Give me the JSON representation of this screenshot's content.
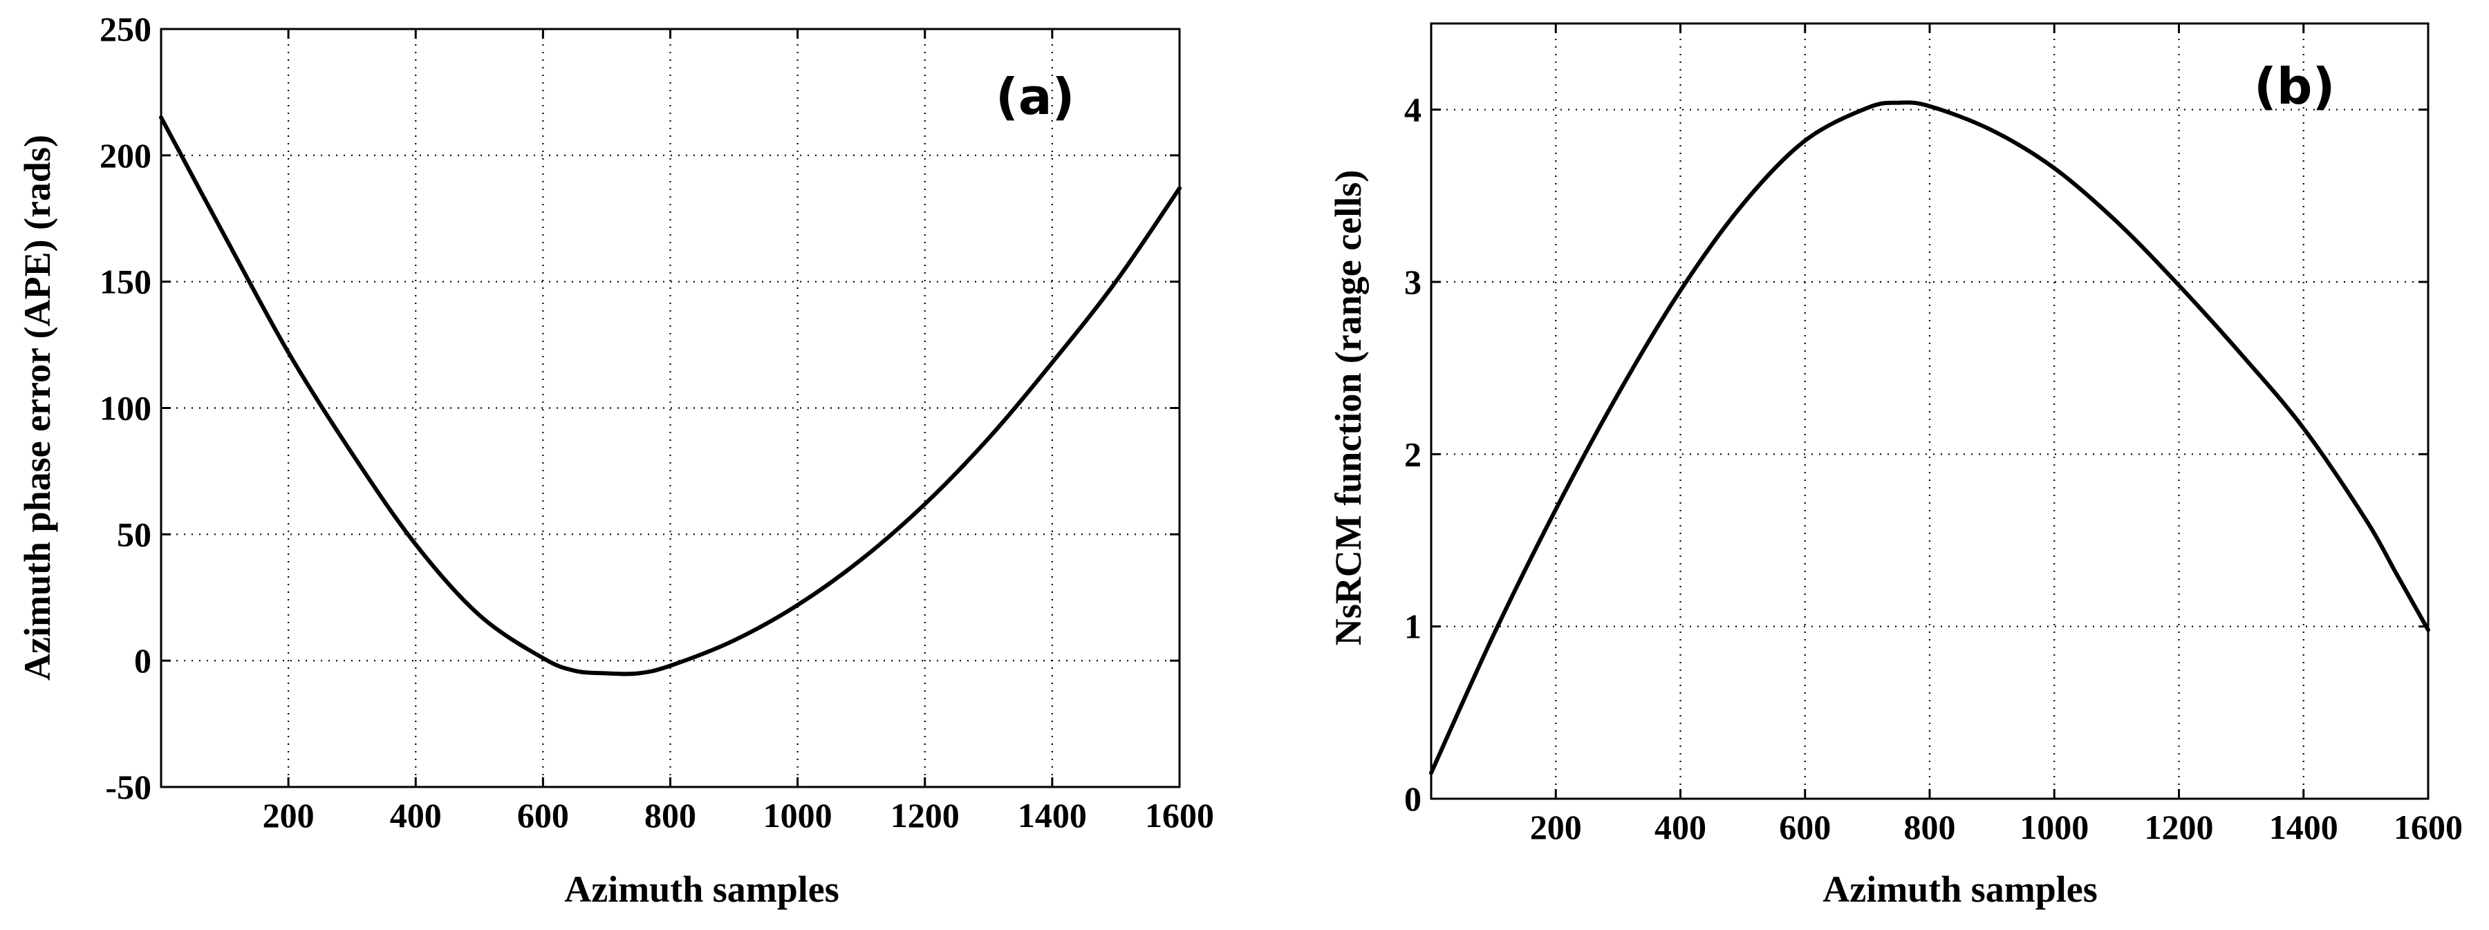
{
  "chart_data": [
    {
      "panel": "(a)",
      "type": "line",
      "title": "",
      "xlabel": "Azimuth samples",
      "ylabel": "Azimuth phase error (APE) (rads)",
      "xlim": [
        0,
        1600
      ],
      "ylim": [
        -50,
        250
      ],
      "xticks": [
        200,
        400,
        600,
        800,
        1000,
        1200,
        1400,
        1600
      ],
      "yticks": [
        -50,
        0,
        50,
        100,
        150,
        200,
        250
      ],
      "xtick_labels": [
        "200",
        "400",
        "600",
        "800",
        "1000",
        "1200",
        "1400",
        "1600"
      ],
      "ytick_labels": [
        "-50",
        "0",
        "50",
        "100",
        "150",
        "200",
        "250"
      ],
      "grid": true,
      "series": [
        {
          "name": "APE",
          "color": "#000000",
          "x": [
            0,
            100,
            200,
            300,
            400,
            500,
            600,
            650,
            700,
            750,
            800,
            900,
            1000,
            1100,
            1200,
            1300,
            1400,
            1500,
            1600
          ],
          "y": [
            215,
            168,
            122,
            82,
            46,
            18,
            1,
            -4,
            -5,
            -5,
            -2,
            8,
            22,
            40,
            62,
            88,
            118,
            150,
            187
          ]
        }
      ]
    },
    {
      "panel": "(b)",
      "type": "line",
      "title": "",
      "xlabel": "Azimuth samples",
      "ylabel": "NsRCM function (range cells)",
      "xlim": [
        0,
        1600
      ],
      "ylim": [
        0,
        4.5
      ],
      "xticks": [
        200,
        400,
        600,
        800,
        1000,
        1200,
        1400,
        1600
      ],
      "yticks": [
        0,
        1,
        2,
        3,
        4
      ],
      "xtick_labels": [
        "200",
        "400",
        "600",
        "800",
        "1000",
        "1200",
        "1400",
        "1600"
      ],
      "ytick_labels": [
        "0",
        "1",
        "2",
        "3",
        "4"
      ],
      "grid": true,
      "series": [
        {
          "name": "NsRCM",
          "color": "#000000",
          "x": [
            0,
            100,
            200,
            300,
            400,
            500,
            600,
            700,
            750,
            800,
            900,
            1000,
            1100,
            1200,
            1300,
            1400,
            1500,
            1550,
            1600
          ],
          "y": [
            0.15,
            0.95,
            1.68,
            2.35,
            2.95,
            3.45,
            3.82,
            4.01,
            4.04,
            4.02,
            3.88,
            3.66,
            3.35,
            2.98,
            2.58,
            2.15,
            1.62,
            1.3,
            0.98
          ]
        }
      ]
    }
  ]
}
